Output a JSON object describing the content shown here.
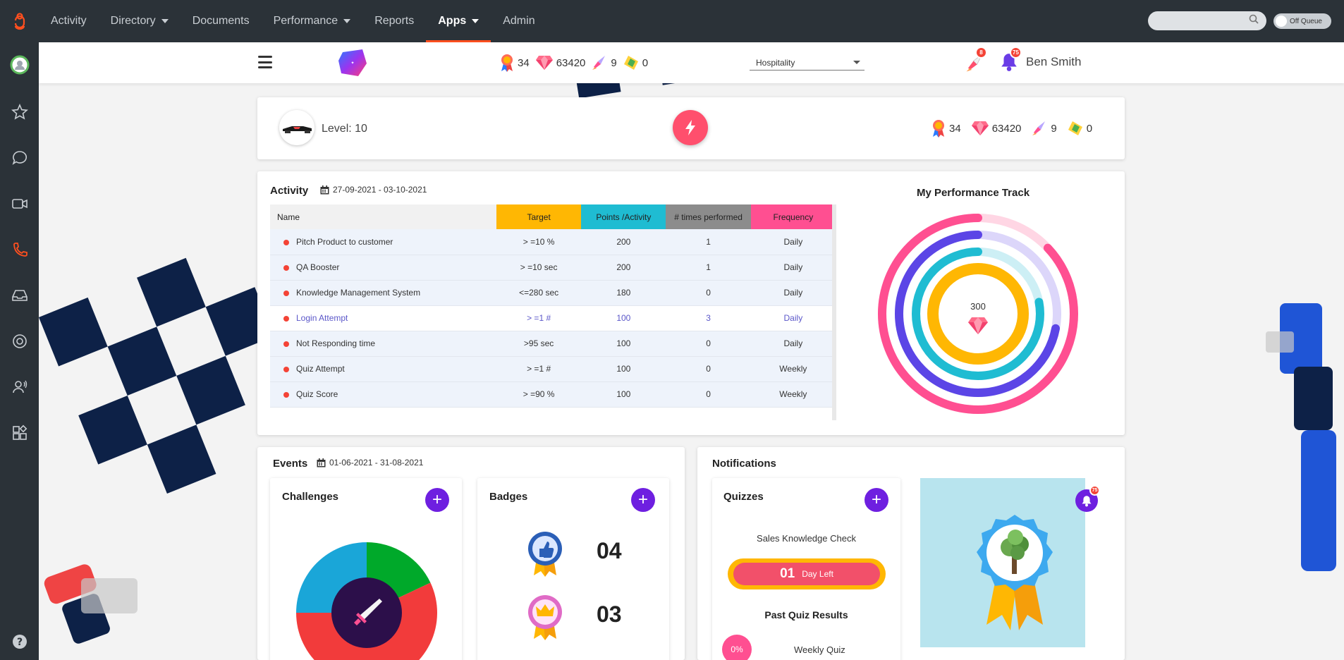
{
  "topnav": {
    "items": [
      {
        "label": "Activity",
        "caret": false,
        "active": false
      },
      {
        "label": "Directory",
        "caret": true,
        "active": false
      },
      {
        "label": "Documents",
        "caret": false,
        "active": false
      },
      {
        "label": "Performance",
        "caret": true,
        "active": false
      },
      {
        "label": "Reports",
        "caret": false,
        "active": false
      },
      {
        "label": "Apps",
        "caret": true,
        "active": true
      },
      {
        "label": "Admin",
        "caret": false,
        "active": false
      }
    ],
    "search_placeholder": "",
    "queue_label": "Off Queue"
  },
  "leftrail": {
    "icons": [
      "status-avatar-icon",
      "star-icon",
      "chat-icon",
      "video-icon",
      "phone-icon",
      "inbox-icon",
      "target-icon",
      "agent-icon",
      "apps-icon",
      "help-icon"
    ]
  },
  "header": {
    "stats": {
      "awards": "34",
      "gems": "63420",
      "rockets": "9",
      "tickets": "0"
    },
    "industry": "Hospitality",
    "rocket_badge": "8",
    "bell_badge": "75",
    "user_name": "Ben Smith"
  },
  "level": {
    "label": "Level: 10",
    "stats": {
      "awards": "34",
      "gems": "63420",
      "rockets": "9",
      "tickets": "0"
    }
  },
  "activity": {
    "title": "Activity",
    "date_range": "27-09-2021 - 03-10-2021",
    "columns": {
      "name": "Name",
      "target": "Target",
      "points": "Points /Activity",
      "times": "# times performed",
      "frequency": "Frequency"
    },
    "header_colors": {
      "target": "#ffb703",
      "points": "#1fbcd2",
      "times": "#8c8c8c",
      "frequency": "#ff4f91"
    },
    "rows": [
      {
        "name": "Pitch Product to customer",
        "target": "> =10  %",
        "points": "200",
        "times": "1",
        "frequency": "Daily"
      },
      {
        "name": "QA Booster",
        "target": "> =10  sec",
        "points": "200",
        "times": "1",
        "frequency": "Daily"
      },
      {
        "name": "Knowledge Management System",
        "target": "<=280  sec",
        "points": "180",
        "times": "0",
        "frequency": "Daily"
      },
      {
        "name": "Login Attempt",
        "target": "> =1  #",
        "points": "100",
        "times": "3",
        "frequency": "Daily"
      },
      {
        "name": "Not Responding time",
        "target": ">95  sec",
        "points": "100",
        "times": "0",
        "frequency": "Daily"
      },
      {
        "name": "Quiz Attempt",
        "target": "> =1  #",
        "points": "100",
        "times": "0",
        "frequency": "Weekly"
      },
      {
        "name": "Quiz Score",
        "target": "> =90  %",
        "points": "100",
        "times": "0",
        "frequency": "Weekly"
      }
    ],
    "highlight_row": 3
  },
  "performance": {
    "title": "My Performance Track",
    "center_value": "300",
    "rings": [
      {
        "color": "#ff4f91",
        "track": "#ffd6e4",
        "fraction": 0.87
      },
      {
        "color": "#5b45e6",
        "track": "#dcd6fa",
        "fraction": 0.72
      },
      {
        "color": "#1fbcd2",
        "track": "#cdeff5",
        "fraction": 0.78
      },
      {
        "color": "#ffb703",
        "track": "#ffe9b0",
        "fraction": 1.0
      }
    ]
  },
  "events": {
    "title": "Events",
    "date_range": "01-06-2021 - 31-08-2021",
    "challenges": {
      "title": "Challenges",
      "slices": [
        {
          "color": "#00a92a",
          "fraction": 0.18
        },
        {
          "color": "#f23b3b",
          "fraction": 0.57
        },
        {
          "color": "#1aa6d8",
          "fraction": 0.25
        }
      ]
    },
    "badges": {
      "title": "Badges",
      "items": [
        {
          "count": "04",
          "icon": "thumbs-up-badge-icon"
        },
        {
          "count": "03",
          "icon": "crown-badge-icon"
        }
      ]
    }
  },
  "notifications": {
    "title": "Notifications",
    "quizzes": {
      "title": "Quizzes",
      "quiz_name": "Sales Knowledge Check",
      "days": "01",
      "days_label": "Day Left",
      "past_title": "Past Quiz Results",
      "past_percent": "0%",
      "past_name": "Weekly Quiz"
    },
    "bell_badge": "75"
  }
}
